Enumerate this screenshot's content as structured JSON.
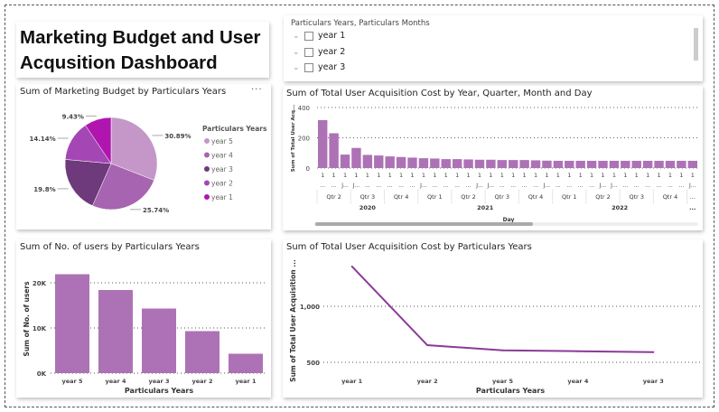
{
  "dashboard": {
    "title": "Marketing Budget and User\nAcqusition Dashboard"
  },
  "slicer": {
    "header": "Particulars Years, Particulars Months",
    "items": [
      {
        "label": "year 1",
        "checked": false
      },
      {
        "label": "year 2",
        "checked": false
      },
      {
        "label": "year 3",
        "checked": false
      }
    ]
  },
  "more_options_label": "...",
  "colors": {
    "bar": "#ad72b5",
    "line": "#8b3a98"
  },
  "chart_data": [
    {
      "type": "pie",
      "title": "Sum of Marketing Budget by Particulars Years",
      "legend_title": "Particulars Years",
      "legend_position": "right",
      "slices": [
        {
          "name": "year 5",
          "value": 30.89,
          "label": "30.89%",
          "color": "#c597c9"
        },
        {
          "name": "year 4",
          "value": 25.74,
          "label": "25.74%",
          "color": "#a764b0"
        },
        {
          "name": "year 3",
          "value": 19.8,
          "label": "19.8%",
          "color": "#6e3a7b"
        },
        {
          "name": "year 2",
          "value": 14.14,
          "label": "14.14%",
          "color": "#a447b5"
        },
        {
          "name": "year 1",
          "value": 9.43,
          "label": "9.43%",
          "color": "#b015b0"
        }
      ]
    },
    {
      "type": "bar",
      "title": "Sum of Total User Acquisition Cost by Year, Quarter, Month and Day",
      "ylabel": "Sum of Total User Acq...",
      "xlabel": "Day",
      "ylim": [
        0,
        400
      ],
      "yticks": [
        "0",
        "200",
        "400"
      ],
      "grid": true,
      "values": [
        317,
        230,
        89,
        133,
        87,
        83,
        77,
        73,
        69,
        65,
        63,
        59,
        59,
        57,
        55,
        55,
        53,
        53,
        53,
        51,
        49,
        48,
        48,
        48,
        48,
        48,
        48,
        48,
        48,
        48,
        48,
        48,
        48,
        48
      ],
      "day_labels": [
        "1",
        "1",
        "1",
        "1",
        "1",
        "1",
        "1",
        "1",
        "1",
        "1",
        "1",
        "1",
        "1",
        "1",
        "1",
        "1",
        "1",
        "1",
        "1",
        "1",
        "1",
        "1",
        "1",
        "1",
        "1",
        "1",
        "1",
        "1",
        "1",
        "1",
        "1",
        "1",
        "1",
        "1"
      ],
      "month_labels": [
        "...",
        "...",
        "J...",
        "J...",
        "...",
        "...",
        "...",
        "...",
        "...",
        "J...",
        "...",
        "...",
        "...",
        "...",
        "J...",
        "J...",
        "...",
        "...",
        "...",
        "...",
        "J...",
        "...",
        "...",
        "...",
        "...",
        "J...",
        "J...",
        "...",
        "...",
        "...",
        "...",
        "...",
        "...",
        "J..."
      ],
      "quarters": [
        {
          "label": "Qtr 2",
          "span": 3
        },
        {
          "label": "Qtr 3",
          "span": 3
        },
        {
          "label": "Qtr 4",
          "span": 3
        },
        {
          "label": "Qtr 1",
          "span": 3
        },
        {
          "label": "Qtr 2",
          "span": 3
        },
        {
          "label": "Qtr 3",
          "span": 3
        },
        {
          "label": "Qtr 4",
          "span": 3
        },
        {
          "label": "Qtr 1",
          "span": 3
        },
        {
          "label": "Qtr 2",
          "span": 3
        },
        {
          "label": "Qtr 3",
          "span": 3
        },
        {
          "label": "Qtr 4",
          "span": 3
        },
        {
          "label": "...",
          "span": 1
        }
      ],
      "years": [
        {
          "label": "2020",
          "span": 9
        },
        {
          "label": "2021",
          "span": 12
        },
        {
          "label": "2022",
          "span": 12
        },
        {
          "label": "...",
          "span": 1
        }
      ]
    },
    {
      "type": "bar",
      "title": "Sum of No. of users by Particulars Years",
      "xlabel": "Particulars Years",
      "ylabel": "Sum of No. of users",
      "ylim": [
        0,
        25000
      ],
      "yticks": [
        {
          "v": 0,
          "l": "0K"
        },
        {
          "v": 10000,
          "l": "10K"
        },
        {
          "v": 20000,
          "l": "20K"
        }
      ],
      "grid": true,
      "categories": [
        "year 5",
        "year 4",
        "year 3",
        "year 2",
        "year 1"
      ],
      "values": [
        21900,
        18400,
        14300,
        9300,
        4300
      ]
    },
    {
      "type": "line",
      "title": "Sum of Total User Acquisition Cost by Particulars Years",
      "xlabel": "Particulars Years",
      "ylabel": "Sum of Total User Acquisition ...",
      "ylim": [
        400,
        1450
      ],
      "yticks": [
        {
          "v": 500,
          "l": "500"
        },
        {
          "v": 1000,
          "l": "1,000"
        }
      ],
      "grid": true,
      "categories": [
        "year 1",
        "year 2",
        "year 5",
        "year 4",
        "year 3"
      ],
      "values": [
        1355,
        653,
        607,
        599,
        591
      ]
    }
  ]
}
